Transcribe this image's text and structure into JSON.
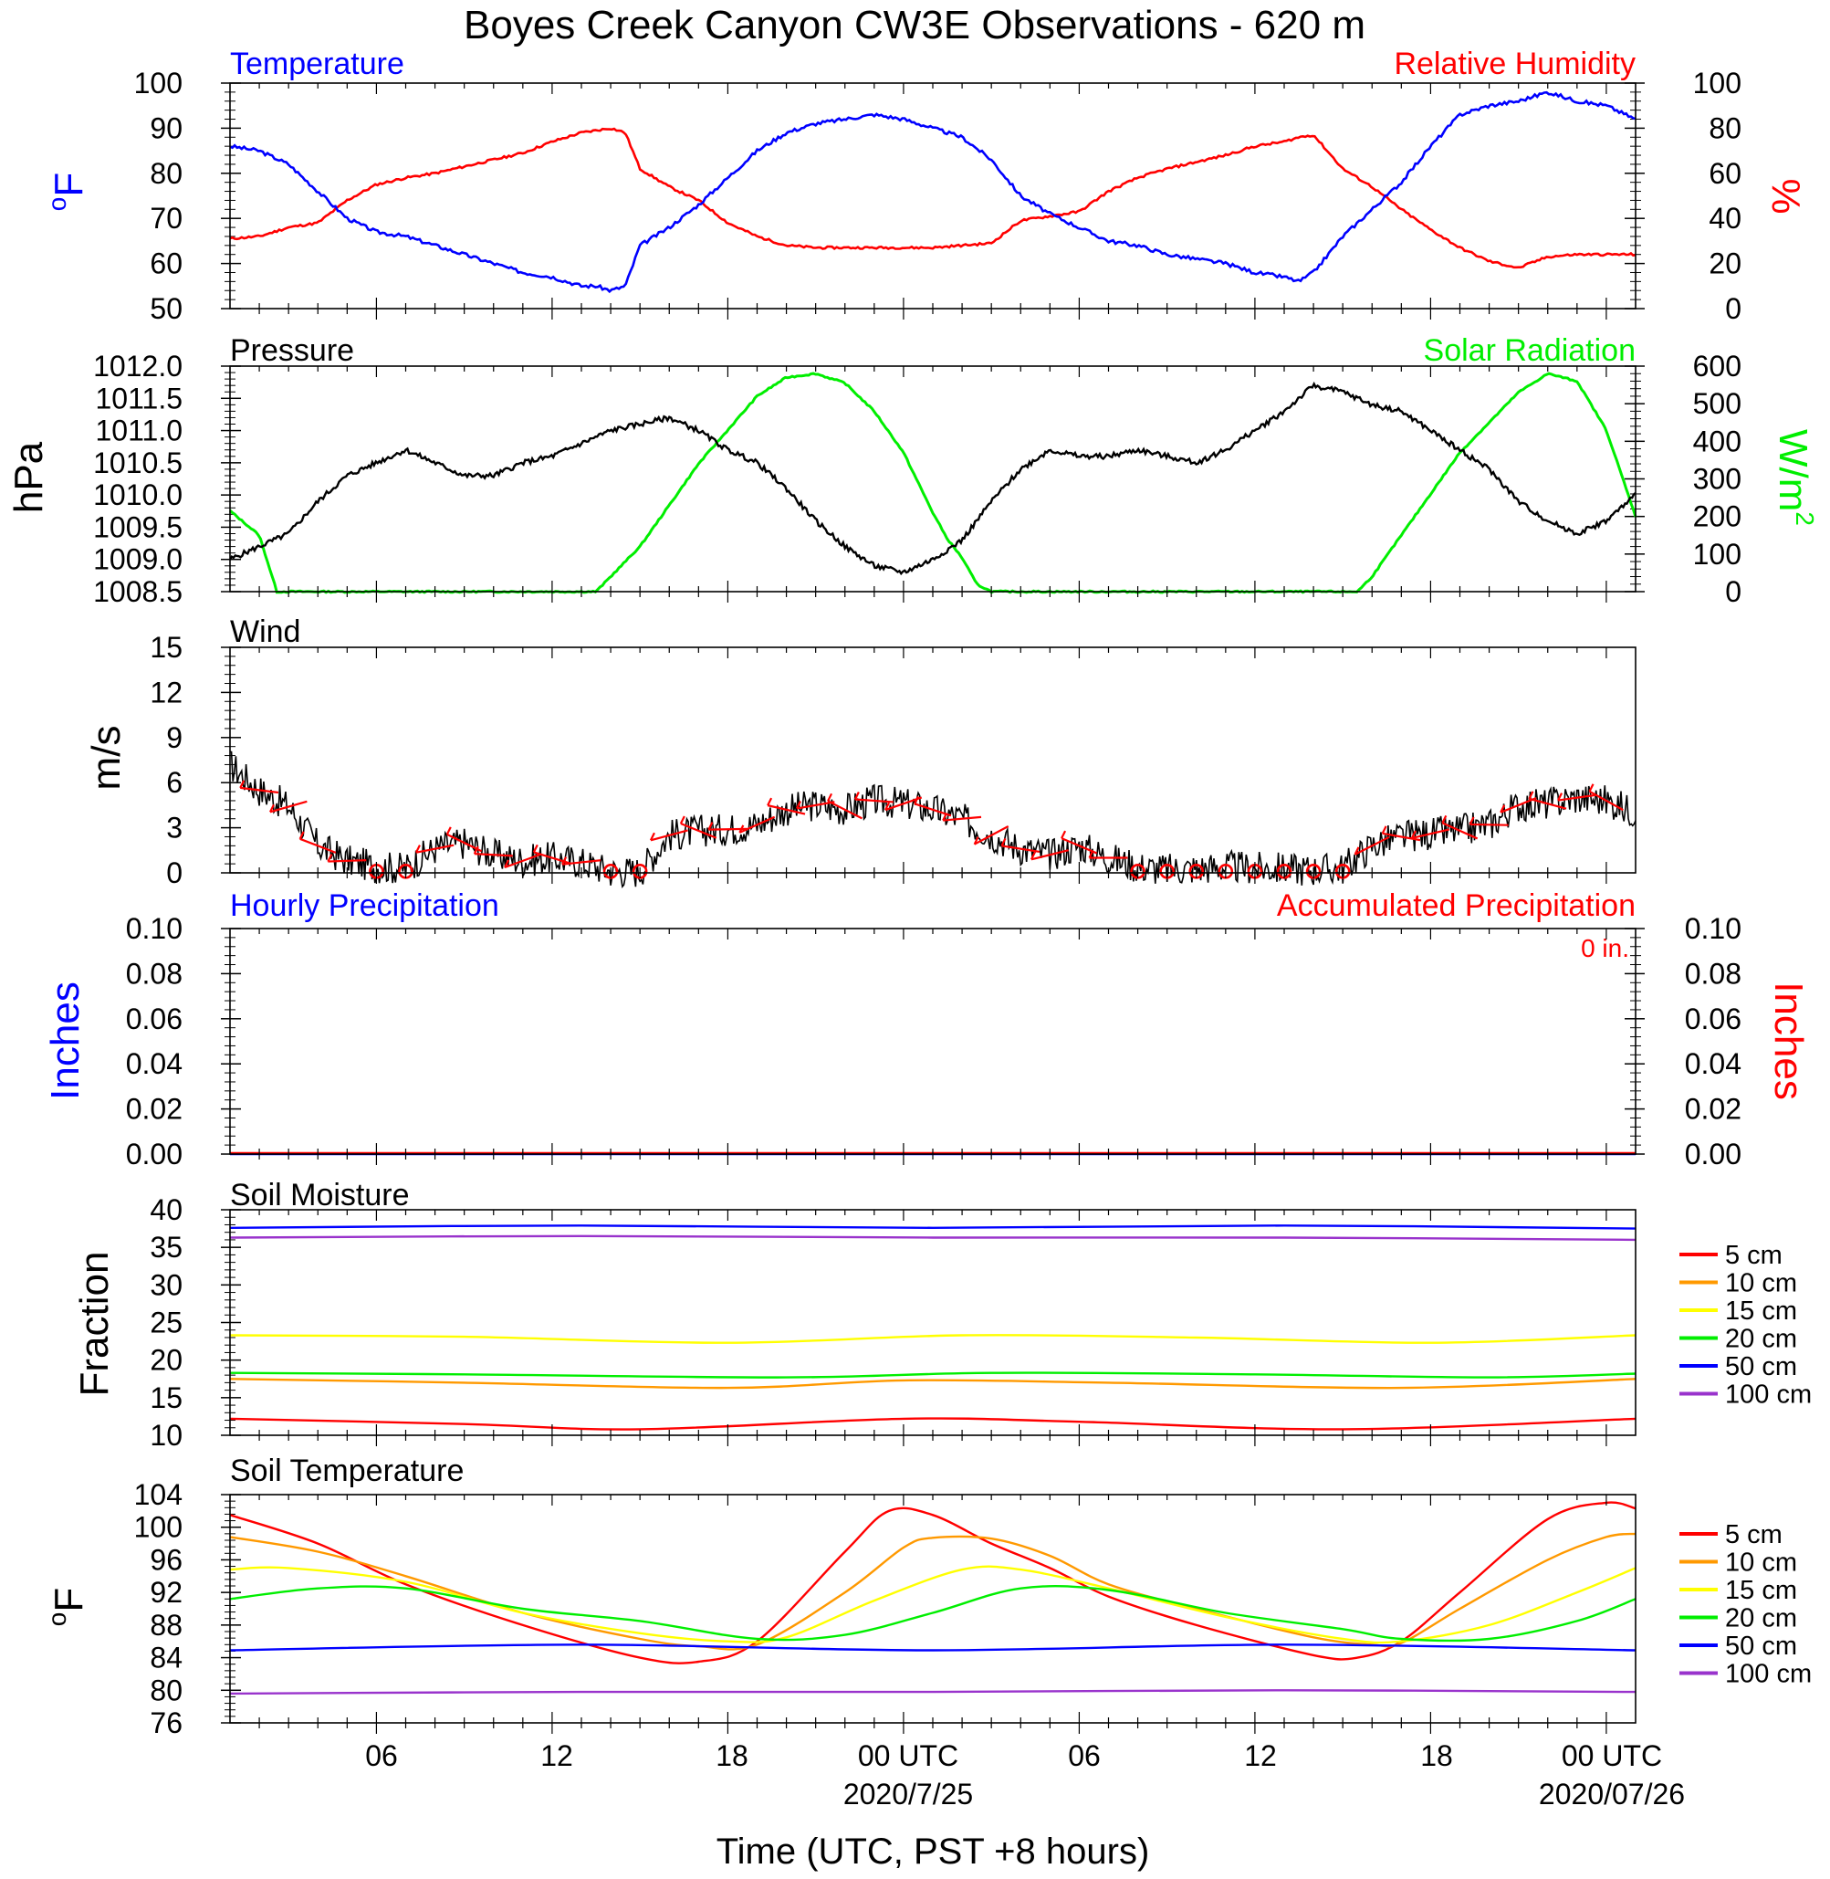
{
  "title": "Boyes Creek Canyon CW3E Observations - 620 m",
  "x_axis": {
    "title": "Time (UTC, PST +8 hours)",
    "tick_labels": [
      "06",
      "12",
      "18",
      "00 UTC",
      "06",
      "12",
      "18",
      "00 UTC"
    ],
    "date_labels": [
      "2020/7/25",
      "2020/07/26"
    ],
    "range_hours": [
      0,
      48
    ]
  },
  "panels": {
    "temp_rh": {
      "left_title": "Temperature",
      "right_title": "Relative Humidity",
      "left_ylabel": "oF",
      "right_ylabel": "%",
      "left_ticks": [
        "100",
        "90",
        "80",
        "70",
        "60",
        "50"
      ],
      "right_ticks": [
        "100",
        "80",
        "60",
        "40",
        "20",
        "0"
      ]
    },
    "pressure_solar": {
      "left_title": "Pressure",
      "right_title": "Solar Radiation",
      "left_ylabel": "hPa",
      "right_ylabel": "W/m2",
      "left_ticks": [
        "1012.0",
        "1011.5",
        "1011.0",
        "1010.5",
        "1010.0",
        "1009.5",
        "1009.0",
        "1008.5"
      ],
      "right_ticks": [
        "600",
        "500",
        "400",
        "300",
        "200",
        "100",
        "0"
      ]
    },
    "wind": {
      "left_title": "Wind",
      "left_ylabel": "m/s",
      "left_ticks": [
        "15",
        "12",
        "9",
        "6",
        "3",
        "0"
      ]
    },
    "precip": {
      "left_title": "Hourly Precipitation",
      "right_title": "Accumulated Precipitation",
      "accum_label": "0 in.",
      "left_ylabel": "Inches",
      "right_ylabel": "Inches",
      "left_ticks": [
        "0.10",
        "0.08",
        "0.06",
        "0.04",
        "0.02",
        "0.00"
      ],
      "right_ticks": [
        "0.10",
        "0.08",
        "0.06",
        "0.04",
        "0.02",
        "0.00"
      ]
    },
    "soil_moisture": {
      "left_title": "Soil Moisture",
      "left_ylabel": "Fraction",
      "left_ticks": [
        "40",
        "35",
        "30",
        "25",
        "20",
        "15",
        "10"
      ]
    },
    "soil_temp": {
      "left_title": "Soil Temperature",
      "left_ylabel": "oF",
      "left_ticks": [
        "104",
        "100",
        "96",
        "92",
        "88",
        "84",
        "80",
        "76"
      ]
    }
  },
  "legend_depths": [
    "5 cm",
    "10 cm",
    "15 cm",
    "20 cm",
    "50 cm",
    "100 cm"
  ],
  "colors": {
    "temperature": "#0000ff",
    "rh": "#ff0000",
    "pressure": "#000000",
    "solar": "#00ee00",
    "wind": "#000000",
    "barb": "#ff0000",
    "accum": "#ff0000",
    "depth": [
      "#ff0000",
      "#ff9900",
      "#ffff00",
      "#00ee00",
      "#0000ff",
      "#9933cc"
    ]
  },
  "chart_data": [
    {
      "type": "line",
      "title": "Temperature / Relative Humidity",
      "x_unit": "hours since 2020/7/24 01 UTC",
      "xlim": [
        0,
        48
      ],
      "series": [
        {
          "name": "Temperature",
          "axis": "left",
          "ylim": [
            50,
            100
          ],
          "x": [
            0,
            1,
            2,
            3,
            4,
            5,
            6,
            7,
            8,
            9,
            10,
            11,
            12,
            12.5,
            13,
            13.5,
            14,
            15,
            16,
            17,
            18,
            19,
            20,
            21,
            22,
            23,
            24,
            25,
            26,
            27,
            28,
            29,
            30,
            31,
            32,
            33,
            34,
            35,
            36,
            36.5,
            37,
            38,
            39,
            40,
            41,
            42,
            43,
            44,
            45,
            46,
            47,
            48
          ],
          "y": [
            86,
            85,
            82,
            76,
            70,
            67,
            66,
            64,
            62,
            60,
            58,
            57,
            55,
            55,
            54,
            55,
            64,
            68,
            73,
            79,
            85,
            89,
            91,
            92,
            93,
            92,
            90,
            88,
            83,
            75,
            71,
            68,
            65,
            64,
            62,
            61,
            60,
            58,
            57,
            56,
            58,
            66,
            72,
            78,
            86,
            93,
            95,
            96,
            98,
            96,
            95,
            92
          ]
        },
        {
          "name": "Relative Humidity",
          "axis": "right",
          "ylim": [
            0,
            100
          ],
          "x": [
            0,
            1,
            2,
            3,
            4,
            5,
            6,
            7,
            8,
            9,
            10,
            11,
            12,
            12.5,
            13,
            13.5,
            14,
            15,
            16,
            17,
            18,
            19,
            20,
            21,
            22,
            23,
            24,
            25,
            26,
            27,
            28,
            29,
            30,
            31,
            32,
            33,
            34,
            35,
            36,
            36.5,
            37,
            38,
            39,
            40,
            41,
            42,
            43,
            44,
            45,
            46,
            47,
            48
          ],
          "y": [
            31,
            32,
            36,
            38,
            48,
            55,
            58,
            60,
            63,
            66,
            69,
            74,
            78,
            79,
            80,
            78,
            62,
            54,
            48,
            38,
            32,
            28,
            27,
            27,
            27,
            27,
            27,
            28,
            29,
            39,
            41,
            43,
            52,
            58,
            62,
            65,
            68,
            72,
            74,
            76,
            77,
            62,
            54,
            44,
            35,
            27,
            21,
            18,
            23,
            24,
            24,
            24
          ]
        }
      ]
    },
    {
      "type": "line",
      "title": "Pressure / Solar Radiation",
      "x_unit": "hours since 2020/7/24 01 UTC",
      "xlim": [
        0,
        48
      ],
      "series": [
        {
          "name": "Pressure",
          "axis": "left",
          "ylim": [
            1008.5,
            1012.0
          ],
          "x": [
            0,
            1,
            2,
            3,
            4,
            5,
            6,
            7,
            8,
            9,
            10,
            11,
            12,
            13,
            14,
            15,
            16,
            17,
            18,
            19,
            20,
            21,
            22,
            23,
            24,
            25,
            26,
            27,
            28,
            29,
            30,
            31,
            32,
            33,
            34,
            35,
            36,
            37,
            38,
            39,
            40,
            41,
            42,
            43,
            44,
            45,
            46,
            47,
            48
          ],
          "y": [
            1009.0,
            1009.2,
            1009.4,
            1009.9,
            1010.3,
            1010.5,
            1010.7,
            1010.5,
            1010.3,
            1010.3,
            1010.5,
            1010.6,
            1010.8,
            1011.0,
            1011.1,
            1011.2,
            1011.0,
            1010.7,
            1010.5,
            1010.1,
            1009.6,
            1009.2,
            1008.9,
            1008.8,
            1009.0,
            1009.3,
            1009.9,
            1010.4,
            1010.7,
            1010.6,
            1010.6,
            1010.7,
            1010.6,
            1010.5,
            1010.7,
            1011.0,
            1011.3,
            1011.7,
            1011.6,
            1011.4,
            1011.3,
            1011.0,
            1010.7,
            1010.4,
            1009.9,
            1009.6,
            1009.4,
            1009.6,
            1010.0
          ]
        },
        {
          "name": "Solar Radiation",
          "axis": "right",
          "ylim": [
            0,
            600
          ],
          "x": [
            0,
            1,
            1.6,
            2,
            12,
            12.5,
            13,
            14,
            16,
            18,
            19,
            20,
            21,
            22,
            23,
            24,
            24.5,
            25,
            25.5,
            26,
            38,
            38.5,
            39,
            40,
            42,
            44,
            45,
            46,
            47,
            48
          ],
          "y": [
            215,
            150,
            0,
            0,
            0,
            0,
            40,
            120,
            340,
            520,
            570,
            580,
            555,
            480,
            370,
            210,
            140,
            90,
            20,
            0,
            0,
            0,
            40,
            150,
            370,
            530,
            580,
            560,
            430,
            200
          ]
        }
      ]
    },
    {
      "type": "line",
      "title": "Wind",
      "x_unit": "hours since 2020/7/24 01 UTC",
      "xlim": [
        0,
        48
      ],
      "ylim": [
        0,
        15
      ],
      "series": [
        {
          "name": "Wind speed",
          "x": [
            0,
            1,
            2,
            3,
            4,
            5,
            6,
            7,
            8,
            9,
            10,
            11,
            12,
            13,
            14,
            15,
            16,
            17,
            18,
            19,
            20,
            21,
            22,
            23,
            24,
            25,
            26,
            27,
            28,
            29,
            30,
            31,
            32,
            33,
            34,
            35,
            36,
            37,
            38,
            39,
            40,
            41,
            42,
            43,
            44,
            45,
            46,
            47,
            48
          ],
          "y": [
            7.2,
            5.5,
            4.4,
            1.8,
            0.8,
            0.4,
            0.3,
            1.6,
            2.0,
            1.2,
            0.8,
            1.0,
            0.7,
            0.1,
            0.1,
            2.5,
            2.8,
            2.9,
            3.2,
            4.2,
            4.5,
            4.2,
            4.8,
            4.6,
            4.2,
            3.6,
            2.5,
            1.6,
            1.2,
            1.8,
            1.0,
            0.4,
            0.2,
            0.3,
            0.4,
            0.3,
            0.3,
            0.2,
            0.3,
            1.8,
            2.4,
            2.6,
            2.8,
            3.2,
            4.5,
            4.6,
            5.0,
            4.8,
            4.0
          ]
        }
      ]
    },
    {
      "type": "line",
      "title": "Precipitation",
      "x_unit": "hours since 2020/7/24 01 UTC",
      "xlim": [
        0,
        48
      ],
      "ylim": [
        0,
        0.1
      ],
      "series": [
        {
          "name": "Hourly Precipitation",
          "x": [
            0,
            48
          ],
          "y": [
            0,
            0
          ]
        },
        {
          "name": "Accumulated Precipitation",
          "x": [
            0,
            48
          ],
          "y": [
            0,
            0
          ]
        }
      ]
    },
    {
      "type": "line",
      "title": "Soil Moisture",
      "x_unit": "hours since 2020/7/24 01 UTC",
      "xlim": [
        0,
        48
      ],
      "ylim": [
        10,
        40
      ],
      "series": [
        {
          "name": "5 cm",
          "x": [
            0,
            8,
            14,
            23,
            29,
            38,
            48
          ],
          "y": [
            12.2,
            11.5,
            10.8,
            12.2,
            11.8,
            10.8,
            12.2
          ]
        },
        {
          "name": "10 cm",
          "x": [
            0,
            8,
            17,
            23,
            30,
            40,
            48
          ],
          "y": [
            17.5,
            17.0,
            16.3,
            17.3,
            17.0,
            16.3,
            17.5
          ]
        },
        {
          "name": "15 cm",
          "x": [
            0,
            8,
            17,
            25,
            33,
            41,
            48
          ],
          "y": [
            23.3,
            23.1,
            22.3,
            23.3,
            23.0,
            22.3,
            23.3
          ]
        },
        {
          "name": "20 cm",
          "x": [
            0,
            8,
            19,
            26,
            35,
            43,
            48
          ],
          "y": [
            18.3,
            18.1,
            17.7,
            18.3,
            18.1,
            17.7,
            18.2
          ]
        },
        {
          "name": "50 cm",
          "x": [
            0,
            12,
            24,
            36,
            48
          ],
          "y": [
            37.6,
            37.9,
            37.6,
            37.9,
            37.5
          ]
        },
        {
          "name": "100 cm",
          "x": [
            0,
            12,
            24,
            36,
            48
          ],
          "y": [
            36.3,
            36.5,
            36.3,
            36.3,
            36.0
          ]
        }
      ]
    },
    {
      "type": "line",
      "title": "Soil Temperature",
      "x_unit": "hours since 2020/7/24 01 UTC",
      "xlim": [
        0,
        48
      ],
      "ylim": [
        76,
        104
      ],
      "series": [
        {
          "name": "5 cm",
          "x": [
            0,
            3,
            6,
            10,
            14,
            16,
            18,
            21,
            22.5,
            24,
            26,
            28,
            30,
            33,
            37,
            38.5,
            40,
            42,
            45,
            47,
            48
          ],
          "y": [
            101.5,
            98,
            93,
            88,
            84,
            83.5,
            86,
            97,
            102,
            101.5,
            98,
            95,
            91.5,
            88,
            84.3,
            84,
            86,
            92,
            101,
            103,
            102.3
          ]
        },
        {
          "name": "10 cm",
          "x": [
            0,
            3,
            6,
            10,
            14,
            16,
            18,
            21,
            23,
            24,
            26,
            28,
            30,
            33,
            37,
            39,
            40,
            42,
            45,
            47,
            48
          ],
          "y": [
            98.8,
            97,
            94,
            89.5,
            86.3,
            85.4,
            85.6,
            92,
            97.5,
            98.7,
            98.6,
            96.5,
            93,
            90,
            86.5,
            85.6,
            85.8,
            90,
            96,
            98.8,
            99.2
          ]
        },
        {
          "name": "15 cm",
          "x": [
            0,
            2,
            6,
            10,
            14,
            17,
            19,
            22,
            25,
            27,
            30,
            34,
            38,
            40,
            43,
            46,
            48
          ],
          "y": [
            94.8,
            95,
            93.3,
            89.5,
            87,
            86,
            86.5,
            91,
            94.8,
            94.8,
            92.5,
            89,
            86.3,
            86,
            88,
            92,
            95
          ]
        },
        {
          "name": "20 cm",
          "x": [
            0,
            3,
            6,
            10,
            14,
            18,
            21,
            24,
            27,
            30,
            34,
            38,
            40,
            43,
            46,
            48
          ],
          "y": [
            91.2,
            92.5,
            92.5,
            90,
            88.5,
            86.3,
            86.8,
            89.5,
            92.5,
            92.3,
            89.5,
            87.5,
            86.3,
            86.3,
            88.5,
            91.2
          ]
        },
        {
          "name": "50 cm",
          "x": [
            0,
            12,
            24,
            36,
            48
          ],
          "y": [
            84.9,
            85.6,
            84.9,
            85.6,
            84.9
          ]
        },
        {
          "name": "100 cm",
          "x": [
            0,
            12,
            24,
            36,
            48
          ],
          "y": [
            79.6,
            79.8,
            79.8,
            80.0,
            79.8
          ]
        }
      ]
    }
  ]
}
